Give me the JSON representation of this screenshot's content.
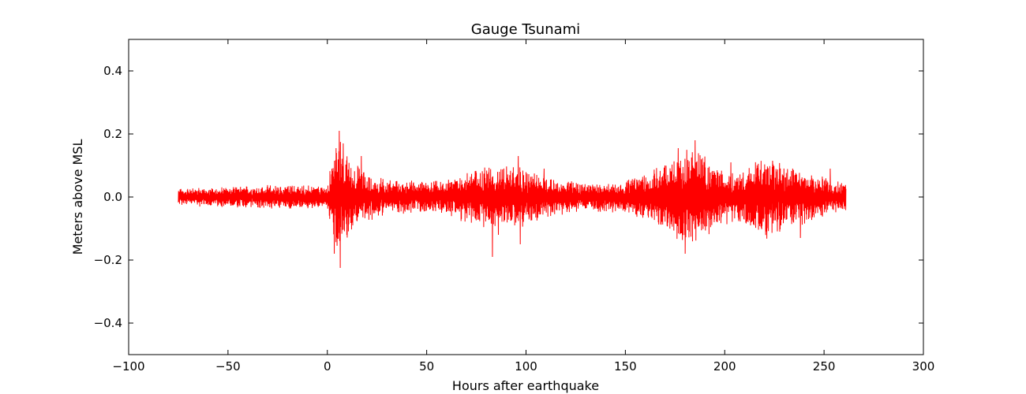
{
  "chart_data": {
    "type": "line",
    "title": "Gauge Tsunami",
    "xlabel": "Hours after earthquake",
    "ylabel": "Meters above MSL",
    "xlim": [
      -100,
      300
    ],
    "ylim": [
      -0.5,
      0.5
    ],
    "xticks": [
      -100,
      -50,
      0,
      50,
      100,
      150,
      200,
      250,
      300
    ],
    "xtick_labels": [
      "−100",
      "−50",
      "0",
      "50",
      "100",
      "150",
      "200",
      "250",
      "300"
    ],
    "yticks": [
      -0.4,
      -0.2,
      0.0,
      0.2,
      0.4
    ],
    "ytick_labels": [
      "−0.4",
      "−0.2",
      "0.0",
      "0.2",
      "0.4"
    ],
    "grid": false,
    "series": [
      {
        "color": "#ff0000",
        "x_range": [
          -75,
          261
        ],
        "sampling_interval_hours": 0.1,
        "envelope": [
          {
            "x": -75,
            "amp": 0.025
          },
          {
            "x": -50,
            "amp": 0.03
          },
          {
            "x": -30,
            "amp": 0.035
          },
          {
            "x": -10,
            "amp": 0.035
          },
          {
            "x": 0,
            "amp": 0.03
          },
          {
            "x": 2,
            "amp": 0.1
          },
          {
            "x": 5,
            "amp": 0.18
          },
          {
            "x": 10,
            "amp": 0.12
          },
          {
            "x": 20,
            "amp": 0.07
          },
          {
            "x": 30,
            "amp": 0.05
          },
          {
            "x": 50,
            "amp": 0.045
          },
          {
            "x": 60,
            "amp": 0.05
          },
          {
            "x": 75,
            "amp": 0.09
          },
          {
            "x": 85,
            "amp": 0.1
          },
          {
            "x": 95,
            "amp": 0.09
          },
          {
            "x": 110,
            "amp": 0.06
          },
          {
            "x": 130,
            "amp": 0.04
          },
          {
            "x": 150,
            "amp": 0.05
          },
          {
            "x": 165,
            "amp": 0.08
          },
          {
            "x": 178,
            "amp": 0.14
          },
          {
            "x": 185,
            "amp": 0.15
          },
          {
            "x": 195,
            "amp": 0.09
          },
          {
            "x": 205,
            "amp": 0.07
          },
          {
            "x": 220,
            "amp": 0.12
          },
          {
            "x": 235,
            "amp": 0.09
          },
          {
            "x": 250,
            "amp": 0.06
          },
          {
            "x": 261,
            "amp": 0.04
          }
        ],
        "spikes": [
          {
            "x": 3.5,
            "y": -0.18
          },
          {
            "x": 6.0,
            "y": 0.21
          },
          {
            "x": 6.5,
            "y": -0.225
          },
          {
            "x": 8.0,
            "y": 0.17
          },
          {
            "x": 17.0,
            "y": 0.13
          },
          {
            "x": 83.0,
            "y": -0.19
          },
          {
            "x": 86.0,
            "y": -0.12
          },
          {
            "x": 96.0,
            "y": 0.13
          },
          {
            "x": 97.0,
            "y": -0.15
          },
          {
            "x": 109.0,
            "y": 0.09
          },
          {
            "x": 176.5,
            "y": 0.155
          },
          {
            "x": 180.0,
            "y": -0.18
          },
          {
            "x": 185.0,
            "y": 0.18
          },
          {
            "x": 203.0,
            "y": 0.11
          },
          {
            "x": 224.0,
            "y": 0.115
          },
          {
            "x": 238.0,
            "y": -0.13
          },
          {
            "x": 253.0,
            "y": 0.09
          }
        ]
      }
    ]
  }
}
